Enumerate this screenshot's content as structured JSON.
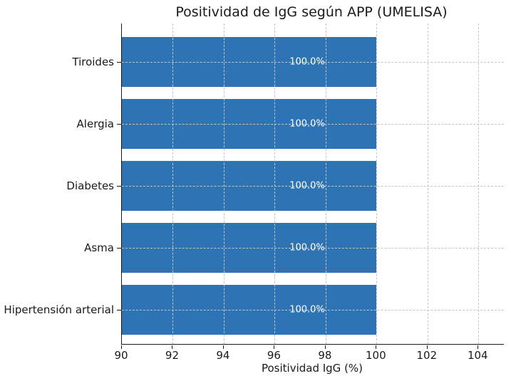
{
  "chart_data": {
    "type": "bar",
    "orientation": "horizontal",
    "title": "Positividad de IgG según APP (UMELISA)",
    "categories": [
      "Tiroides",
      "Alergia",
      "Diabetes",
      "Asma",
      "Hipertensión arterial"
    ],
    "values": [
      100.0,
      100.0,
      100.0,
      100.0,
      100.0
    ],
    "value_labels": [
      "100.0%",
      "100.0%",
      "100.0%",
      "100.0%",
      "100.0%"
    ],
    "xlabel": "Positividad IgG (%)",
    "xlim": [
      90,
      105
    ],
    "xticks": [
      90,
      92,
      94,
      96,
      98,
      100,
      102,
      104
    ],
    "grid": "dashed-both-axes-over-bars",
    "legend": "none",
    "bar_color": "#2e74b4",
    "grid_color": "#c4c4c4",
    "text_color": "#1a1a1a",
    "background_color": "#ffffff"
  }
}
